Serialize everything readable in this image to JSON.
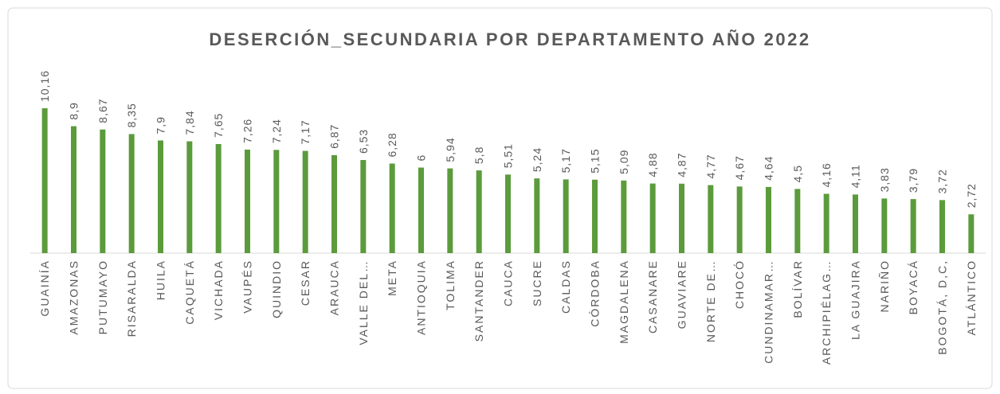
{
  "chart_data": {
    "type": "bar",
    "title": "DESERCIÓN_SECUNDARIA  POR DEPARTAMENTO AÑO 2022",
    "categories": [
      "GUAINÍA",
      "AMAZONAS",
      "PUTUMAYO",
      "RISARALDA",
      "HUILA",
      "CAQUETÁ",
      "VICHADA",
      "VAUPÉS",
      "QUINDIO",
      "CESAR",
      "ARAUCA",
      "VALLE DEL…",
      "META",
      "ANTIOQUIA",
      "TOLIMA",
      "SANTANDER",
      "CAUCA",
      "SUCRE",
      "CALDAS",
      "CÓRDOBA",
      "MAGDALENA",
      "CASANARE",
      "GUAVIARE",
      "NORTE DE…",
      "CHOCÓ",
      "CUNDINAMAR…",
      "BOLÍVAR",
      "ARCHIPIÉLAG…",
      "LA GUAJIRA",
      "NARIÑO",
      "BOYACÁ",
      "BOGOTÁ, D,C,",
      "ATLÁNTICO"
    ],
    "values": [
      10.16,
      8.9,
      8.67,
      8.35,
      7.9,
      7.84,
      7.65,
      7.26,
      7.24,
      7.17,
      6.87,
      6.53,
      6.28,
      6,
      5.94,
      5.8,
      5.51,
      5.24,
      5.17,
      5.15,
      5.09,
      4.88,
      4.87,
      4.77,
      4.67,
      4.64,
      4.5,
      4.16,
      4.11,
      3.83,
      3.79,
      3.72,
      2.72
    ],
    "value_labels": [
      "10,16",
      "8,9",
      "8,67",
      "8,35",
      "7,9",
      "7,84",
      "7,65",
      "7,26",
      "7,24",
      "7,17",
      "6,87",
      "6,53",
      "6,28",
      "6",
      "5,94",
      "5,8",
      "5,51",
      "5,24",
      "5,17",
      "5,15",
      "5,09",
      "4,88",
      "4,87",
      "4,77",
      "4,67",
      "4,64",
      "4,5",
      "4,16",
      "4,11",
      "3,83",
      "3,79",
      "3,72",
      "2,72"
    ],
    "color": "#5b9b3c"
  }
}
